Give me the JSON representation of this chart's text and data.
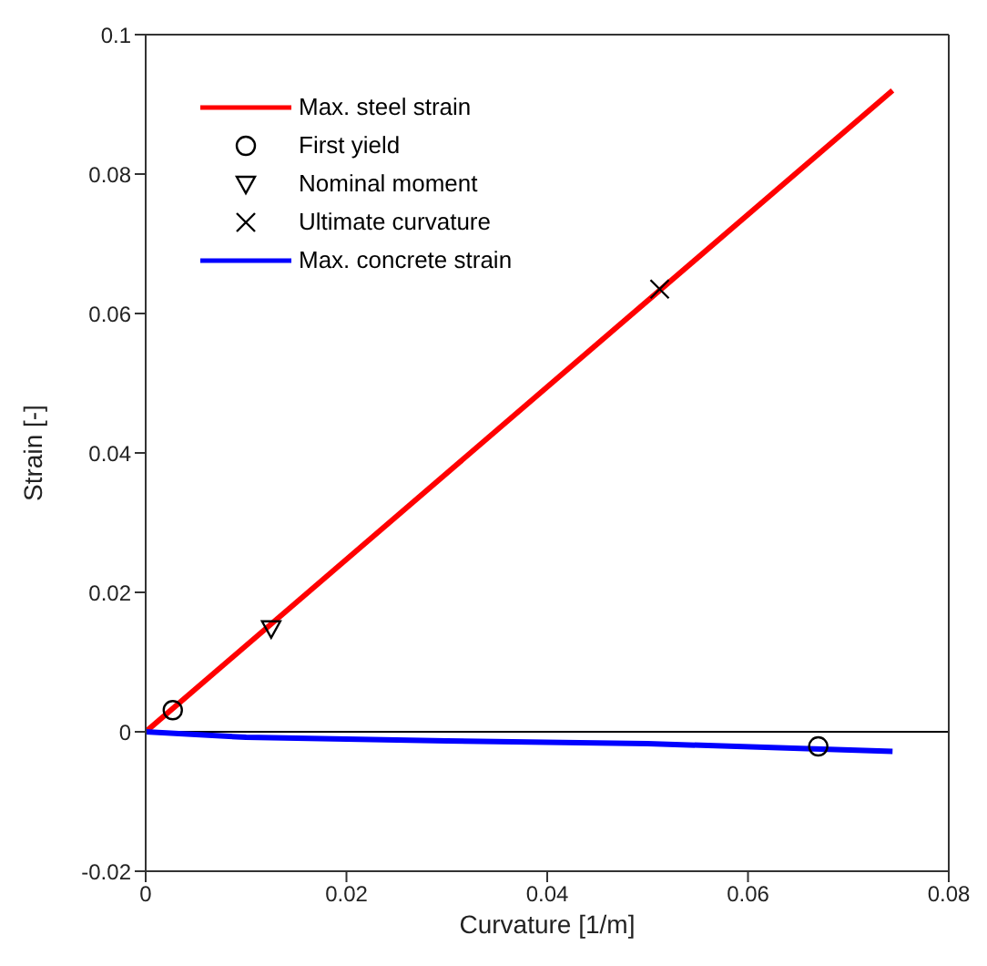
{
  "chart_data": {
    "type": "line",
    "xlabel": "Curvature [1/m]",
    "ylabel": "Strain [-]",
    "xlim": [
      0,
      0.08
    ],
    "xticks": [
      0,
      0.02,
      0.04,
      0.06,
      0.08
    ],
    "ylim": [
      -0.02,
      0.1
    ],
    "yticks": [
      -0.02,
      0,
      0.02,
      0.04,
      0.06,
      0.08,
      0.1
    ],
    "legend": "top left",
    "line_style": "solid",
    "ref_lines": [
      {
        "axis": "y",
        "value": 0,
        "color": "#000000"
      }
    ],
    "series": [
      {
        "name": "Max. steel strain",
        "color": "#ff0000",
        "marker": "none",
        "x": [
          0,
          0.0744
        ],
        "values": [
          0,
          0.092
        ]
      },
      {
        "name": "First yield",
        "type": "scatter",
        "color": "#000000",
        "marker": "circle",
        "x": [
          0.0027,
          0.067
        ],
        "values": [
          0.0031,
          -0.0021
        ]
      },
      {
        "name": "Nominal moment",
        "type": "scatter",
        "color": "#000000",
        "marker": "triangle",
        "x": [
          0.0125
        ],
        "values": [
          0.0148
        ]
      },
      {
        "name": "Ultimate curvature",
        "type": "scatter",
        "color": "#000000",
        "marker": "cross",
        "x": [
          0.0512
        ],
        "values": [
          0.0635
        ]
      },
      {
        "name": "Max. concrete strain",
        "color": "#0000ff",
        "marker": "none",
        "x": [
          0,
          0.01,
          0.03,
          0.05,
          0.0744
        ],
        "values": [
          0,
          -0.0008,
          -0.0013,
          -0.0017,
          -0.0028
        ]
      }
    ]
  }
}
